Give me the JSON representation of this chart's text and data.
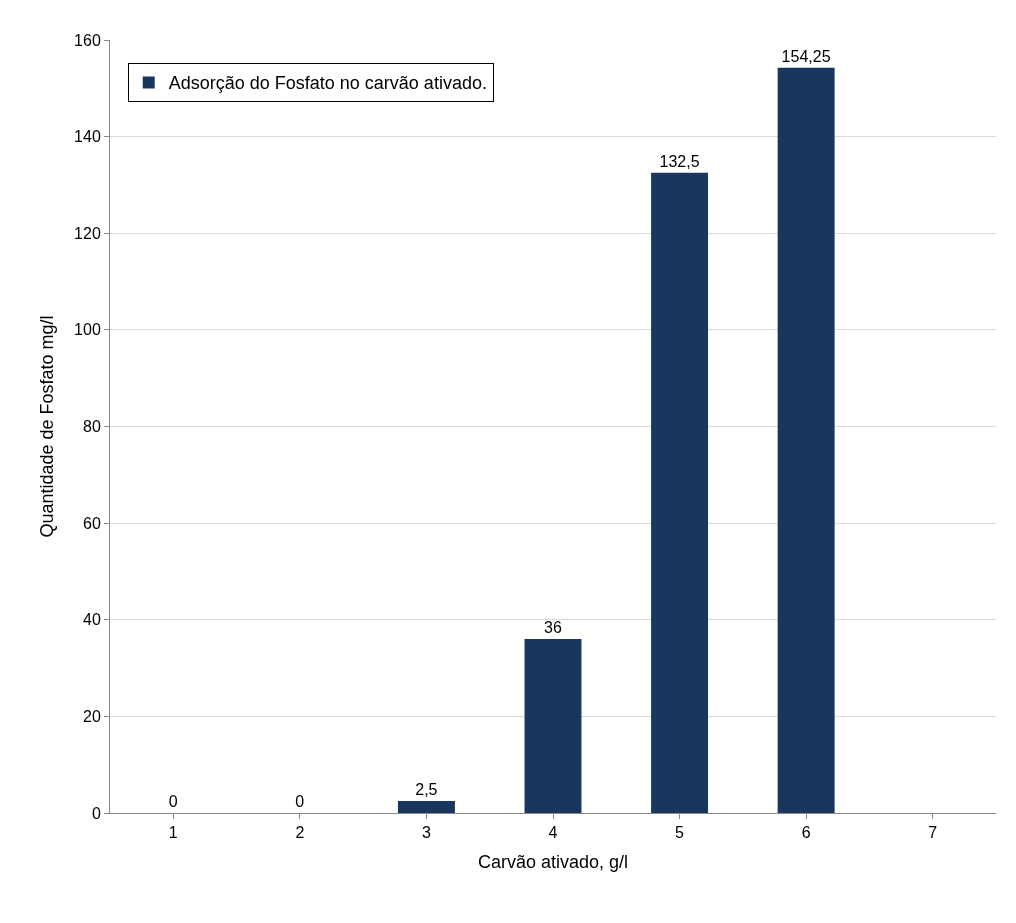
{
  "chart_data": {
    "type": "bar",
    "xlabel": "Carvão ativado, g/l",
    "ylabel": "Quantidade de Fosfato mg/l",
    "categories": [
      "1",
      "2",
      "3",
      "4",
      "5",
      "6",
      "7"
    ],
    "series": [
      {
        "name": "Adsorção do Fosfato no carvão ativado.",
        "color": "#17375e",
        "values": [
          0,
          0,
          2.5,
          36,
          132.5,
          154.25,
          null
        ],
        "value_labels": [
          "0",
          "0",
          "2,5",
          "36",
          "132,5",
          "154,25",
          null
        ]
      }
    ],
    "ylim": [
      0,
      160
    ],
    "yticks": [
      0,
      20,
      40,
      60,
      80,
      100,
      120,
      140,
      160
    ],
    "grid": "y",
    "legend": "top left"
  }
}
